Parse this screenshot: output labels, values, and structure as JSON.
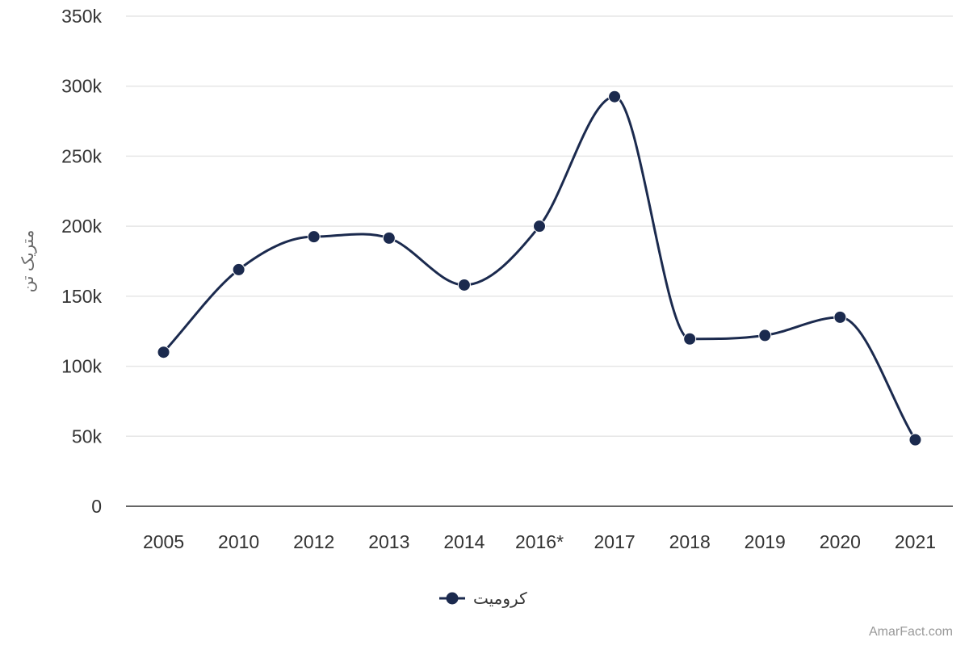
{
  "chart_data": {
    "type": "line",
    "ylabel": "متریک تن",
    "categories": [
      "2005",
      "2010",
      "2012",
      "2013",
      "2014",
      "2016*",
      "2017",
      "2018",
      "2019",
      "2020",
      "2021"
    ],
    "series": [
      {
        "name": "کرومیت",
        "values": [
          110000,
          169000,
          192500,
          191500,
          158000,
          200000,
          292500,
          119500,
          122000,
          135000,
          47500
        ]
      }
    ],
    "ylim": [
      0,
      350000
    ],
    "yticks": [
      0,
      50000,
      100000,
      150000,
      200000,
      250000,
      300000,
      350000
    ],
    "ytick_labels": [
      "0",
      "50k",
      "100k",
      "150k",
      "200k",
      "250k",
      "300k",
      "350k"
    ],
    "grid": true,
    "legend_position": "bottom-center",
    "colors": {
      "series": "#1b2a4e",
      "grid": "#e6e6e6",
      "axis": "#333333"
    }
  },
  "credit": "AmarFact.com"
}
